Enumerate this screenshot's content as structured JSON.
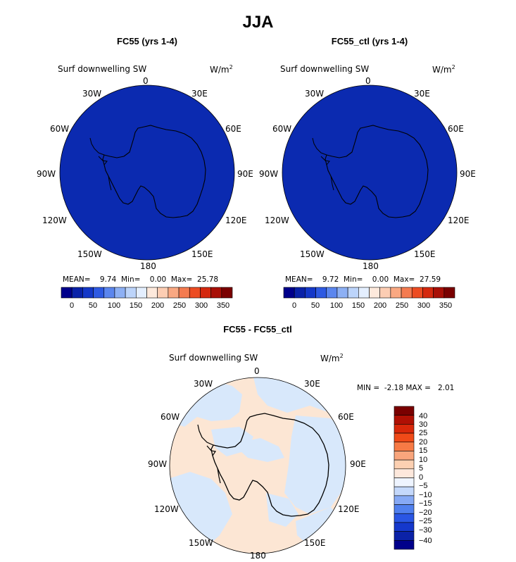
{
  "title": "JJA",
  "panels": [
    {
      "title": "FC55 (yrs 1-4)",
      "variable": "Surf downwelling SW",
      "units": "W/m",
      "units_exp": "2",
      "stats": {
        "mean_label": "MEAN=",
        "mean": "9.74",
        "min_label": "Min=",
        "min": "0.00",
        "max_label": "Max=",
        "max": "25.78"
      },
      "fill_color": "#0b2ab0",
      "colorbar_ticks": [
        "0",
        "50",
        "100",
        "150",
        "200",
        "250",
        "300",
        "350"
      ]
    },
    {
      "title": "FC55_ctl (yrs 1-4)",
      "variable": "Surf downwelling SW",
      "units": "W/m",
      "units_exp": "2",
      "stats": {
        "mean_label": "MEAN=",
        "mean": "9.72",
        "min_label": "Min=",
        "min": "0.00",
        "max_label": "Max=",
        "max": "27.59"
      },
      "fill_color": "#0b2ab0",
      "colorbar_ticks": [
        "0",
        "50",
        "100",
        "150",
        "200",
        "250",
        "300",
        "350"
      ]
    }
  ],
  "diff_panel": {
    "title": "FC55 - FC55_ctl",
    "variable": "Surf downwelling SW",
    "units": "W/m",
    "units_exp": "2",
    "stats": {
      "min_label": "MIN =",
      "min": "-2.18",
      "max_label": "MAX =",
      "max": "2.01"
    },
    "colorbar_ticks": [
      "40",
      "30",
      "25",
      "20",
      "15",
      "10",
      "5",
      "0",
      "−5",
      "−10",
      "−15",
      "−20",
      "−25",
      "−30",
      "−40"
    ],
    "positive_color": "#fce6d4",
    "negative_color": "#d8e8fb"
  },
  "lon_labels": [
    "0",
    "30E",
    "60E",
    "90E",
    "120E",
    "150E",
    "180",
    "150W",
    "120W",
    "90W",
    "60W",
    "30W"
  ],
  "colors": {
    "abs_colorbar": [
      "#00008b",
      "#0a22a8",
      "#1438c8",
      "#2e5ae2",
      "#5b86ee",
      "#8db0f4",
      "#bcd4fa",
      "#e4efff",
      "#fde9dc",
      "#fccdb3",
      "#f9a882",
      "#f47b50",
      "#ec4c22",
      "#d4280e",
      "#a80f06",
      "#7a0000"
    ],
    "diff_colorbar": [
      "#7a0000",
      "#b01004",
      "#d9280a",
      "#f04a18",
      "#f77a45",
      "#f9a57c",
      "#fcd0b2",
      "#fde8dc",
      "#eef4ff",
      "#c4d8fb",
      "#86a9f5",
      "#5080ee",
      "#2a56e4",
      "#1538cc",
      "#0b22a8",
      "#00008b"
    ]
  },
  "chart_data": [
    {
      "type": "heatmap",
      "projection": "south-polar-stereographic",
      "title": "FC55 (yrs 1-4)",
      "variable": "Surf downwelling SW",
      "units": "W/m2",
      "mean": 9.74,
      "min": 0.0,
      "max": 25.78,
      "colorbar_levels": [
        0,
        50,
        100,
        150,
        200,
        250,
        300,
        350
      ],
      "field": "uniform lowest contour level (0-25 W/m2) over the whole domain"
    },
    {
      "type": "heatmap",
      "projection": "south-polar-stereographic",
      "title": "FC55_ctl (yrs 1-4)",
      "variable": "Surf downwelling SW",
      "units": "W/m2",
      "mean": 9.72,
      "min": 0.0,
      "max": 27.59,
      "colorbar_levels": [
        0,
        50,
        100,
        150,
        200,
        250,
        300,
        350
      ],
      "field": "uniform lowest contour level (0-25 W/m2) over the whole domain"
    },
    {
      "type": "heatmap",
      "projection": "south-polar-stereographic",
      "title": "FC55 - FC55_ctl",
      "variable": "Surf downwelling SW",
      "units": "W/m2",
      "min": -2.18,
      "max": 2.01,
      "colorbar_levels": [
        -40,
        -30,
        -25,
        -20,
        -15,
        -10,
        -5,
        0,
        5,
        10,
        15,
        20,
        25,
        30,
        40
      ],
      "field": "values between -5 and 5 only: patchy mix of 0-5 and -5-0"
    }
  ]
}
